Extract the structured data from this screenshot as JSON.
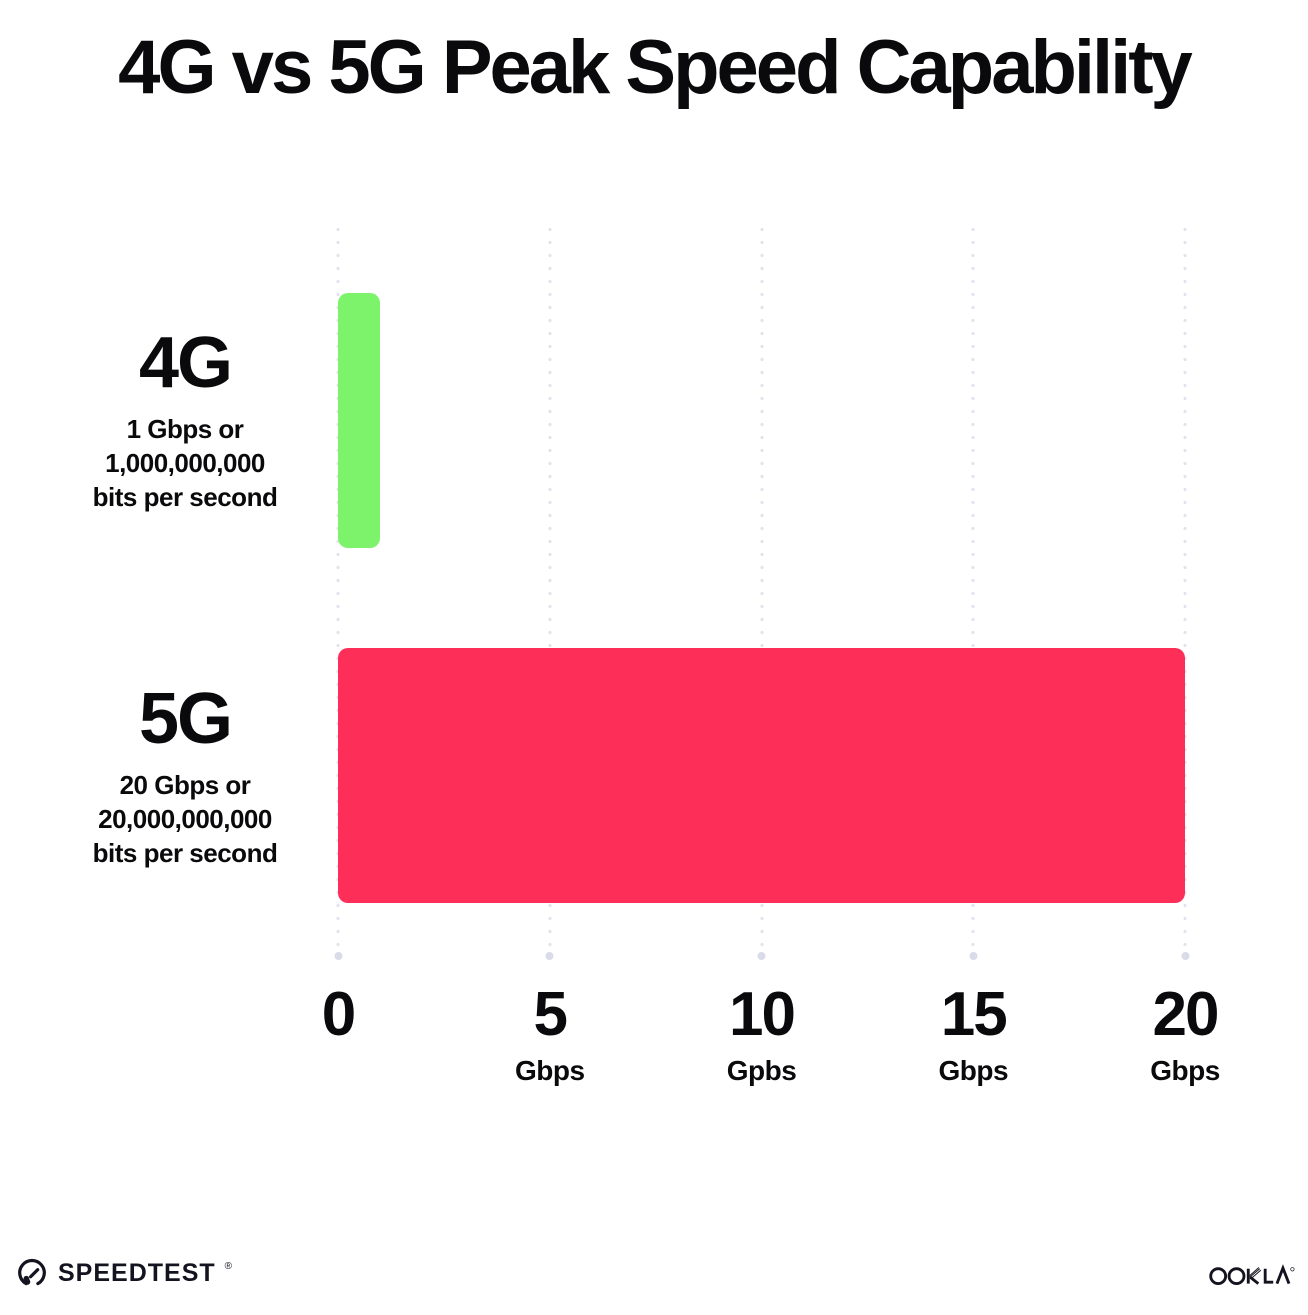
{
  "title": "4G vs 5G Peak Speed Capability",
  "chart_data": {
    "type": "bar",
    "orientation": "horizontal",
    "title": "4G vs 5G Peak Speed Capability",
    "categories": [
      "4G",
      "5G"
    ],
    "values": [
      1,
      20
    ],
    "bar_colors": [
      "#7df36c",
      "#fd2e58"
    ],
    "row_labels": [
      {
        "name": "4G",
        "lines": [
          "1 Gbps or",
          "1,000,000,000",
          "bits per second"
        ]
      },
      {
        "name": "5G",
        "lines": [
          "20 Gbps or",
          "20,000,000,000",
          "bits per second"
        ]
      }
    ],
    "x_ticks": [
      {
        "value": 0,
        "label": "0",
        "unit": ""
      },
      {
        "value": 5,
        "label": "5",
        "unit": "Gbps"
      },
      {
        "value": 10,
        "label": "10",
        "unit": "Gpbs"
      },
      {
        "value": 15,
        "label": "15",
        "unit": "Gbps"
      },
      {
        "value": 20,
        "label": "20",
        "unit": "Gbps"
      }
    ],
    "xlim": [
      0,
      20
    ],
    "xlabel": "",
    "ylabel": "",
    "grid": "dotted-vertical",
    "legend_position": "none"
  },
  "footer": {
    "speedtest_label": "SPEEDTEST",
    "speedtest_mark": "®",
    "ookla_label": "OOKLA",
    "ookla_mark": "®"
  },
  "colors": {
    "background": "#ffffff",
    "text": "#0a0a0c",
    "gridline_dot": "#e1e3ee",
    "gridline_end_dot": "#d9dbe8",
    "bar_4g": "#7df36c",
    "bar_5g": "#fd2e58",
    "logo": "#141420"
  }
}
